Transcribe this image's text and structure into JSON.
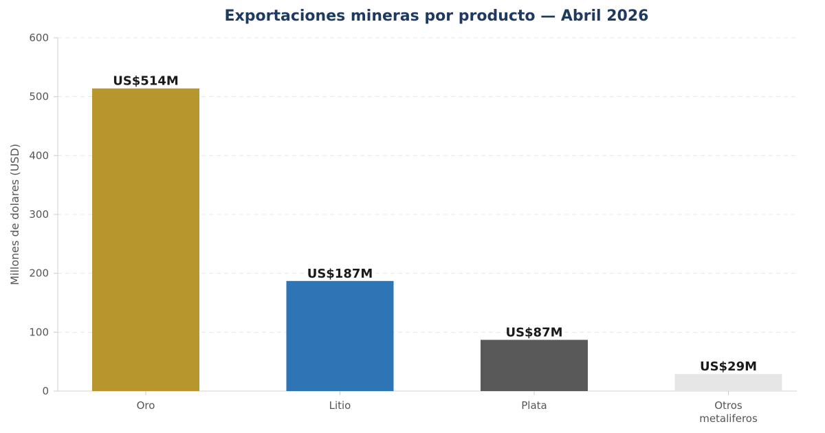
{
  "chart_data": {
    "type": "bar",
    "title": "Exportaciones mineras por producto — Abril 2026",
    "xlabel": "",
    "ylabel": "Millones de dolares (USD)",
    "ylim": [
      0,
      600
    ],
    "yticks": [
      0,
      100,
      200,
      300,
      400,
      500,
      600
    ],
    "categories": [
      [
        "Oro"
      ],
      [
        "Litio"
      ],
      [
        "Plata"
      ],
      [
        "Otros",
        "metaliferos"
      ]
    ],
    "values": [
      514,
      187,
      87,
      29
    ],
    "data_labels": [
      "US$514M",
      "US$187M",
      "US$87M",
      "US$29M"
    ],
    "colors": [
      "#b8962e",
      "#2e75b6",
      "#595959",
      "#e6e6e6"
    ],
    "grid": "horizontal-dashed",
    "legend": "none"
  }
}
